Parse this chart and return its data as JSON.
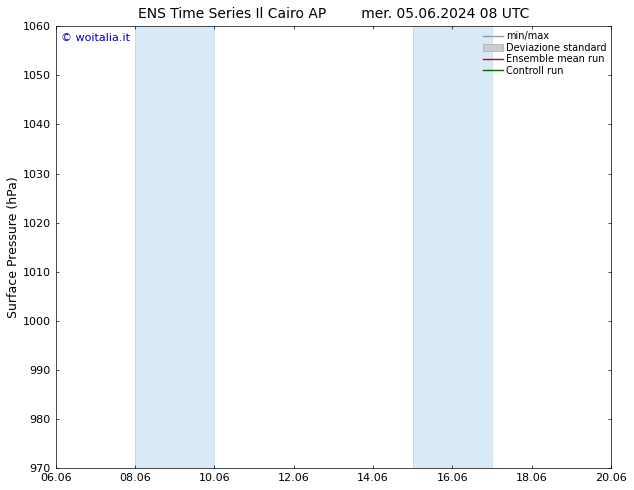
{
  "title_left": "ENS Time Series Il Cairo AP",
  "title_right": "mer. 05.06.2024 08 UTC",
  "ylabel": "Surface Pressure (hPa)",
  "ylim": [
    970,
    1060
  ],
  "yticks": [
    970,
    980,
    990,
    1000,
    1010,
    1020,
    1030,
    1040,
    1050,
    1060
  ],
  "xtick_labels": [
    "06.06",
    "08.06",
    "10.06",
    "12.06",
    "14.06",
    "16.06",
    "18.06",
    "20.06"
  ],
  "xtick_positions": [
    0,
    2,
    4,
    6,
    8,
    10,
    12,
    14
  ],
  "xlim": [
    0,
    14
  ],
  "shaded_bands": [
    {
      "xmin": 2,
      "xmax": 4
    },
    {
      "xmin": 9,
      "xmax": 11
    }
  ],
  "band_color": "#d8eaf8",
  "band_edge_color": "#b8d4f0",
  "background_color": "#ffffff",
  "watermark_text": "© woitalia.it",
  "watermark_color": "#0000cc",
  "legend_items": [
    {
      "label": "min/max",
      "color": "#999999",
      "lw": 1.0,
      "type": "line"
    },
    {
      "label": "Deviazione standard",
      "color": "#cccccc",
      "type": "fill"
    },
    {
      "label": "Ensemble mean run",
      "color": "#cc0000",
      "lw": 1.0,
      "type": "line"
    },
    {
      "label": "Controll run",
      "color": "#006600",
      "lw": 1.0,
      "type": "line"
    }
  ],
  "title_fontsize": 10,
  "ylabel_fontsize": 9,
  "tick_fontsize": 8,
  "legend_fontsize": 7,
  "watermark_fontsize": 8
}
